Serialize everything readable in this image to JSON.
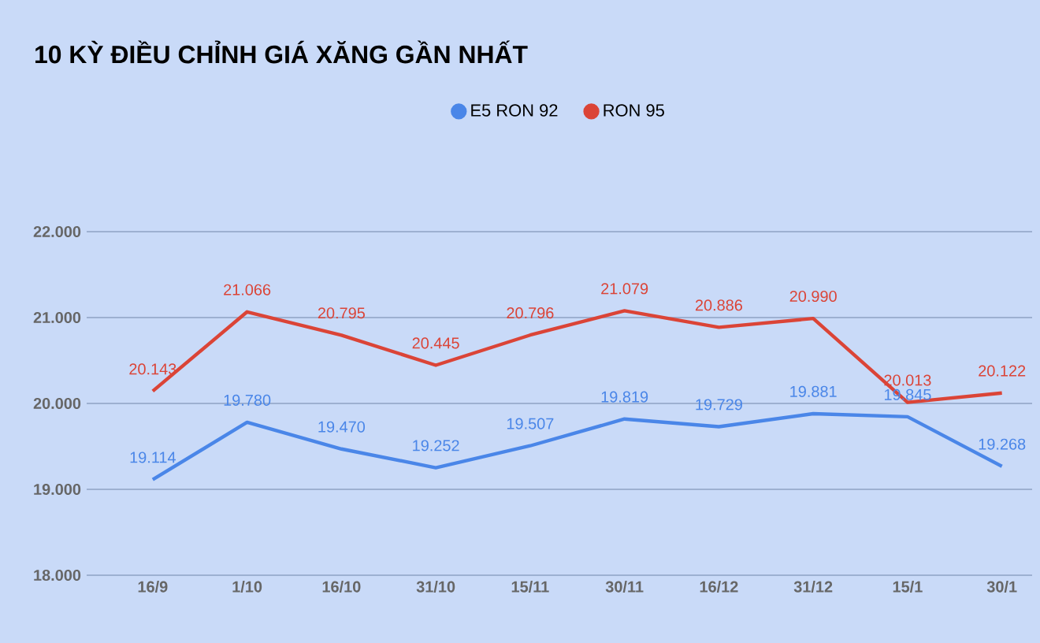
{
  "chart_data": {
    "type": "line",
    "title": "10 KỲ ĐIỀU CHỈNH GIÁ XĂNG GẦN NHẤT",
    "categories": [
      "16/9",
      "1/10",
      "16/10",
      "31/10",
      "15/11",
      "30/11",
      "16/12",
      "31/12",
      "15/1",
      "30/1"
    ],
    "series": [
      {
        "name": "E5 RON 92",
        "color": "#4a86e8",
        "values": [
          19114,
          19780,
          19470,
          19252,
          19507,
          19819,
          19729,
          19881,
          19845,
          19268
        ],
        "value_labels": [
          "19.114",
          "19.780",
          "19.470",
          "19.252",
          "19.507",
          "19.819",
          "19.729",
          "19.881",
          "19.845",
          "19.268"
        ]
      },
      {
        "name": "RON 95",
        "color": "#db4437",
        "values": [
          20143,
          21066,
          20795,
          20445,
          20796,
          21079,
          20886,
          20990,
          20013,
          20122
        ],
        "value_labels": [
          "20.143",
          "21.066",
          "20.795",
          "20.445",
          "20.796",
          "21.079",
          "20.886",
          "20.990",
          "20.013",
          "20.122"
        ]
      }
    ],
    "ylim": [
      18000,
      22000
    ],
    "yticks": [
      {
        "value": 18000,
        "label": "18.000"
      },
      {
        "value": 19000,
        "label": "19.000"
      },
      {
        "value": 20000,
        "label": "20.000"
      },
      {
        "value": 21000,
        "label": "21.000"
      },
      {
        "value": 22000,
        "label": "22.000"
      }
    ],
    "grid": "y",
    "legend": "top",
    "marker": "none",
    "line_style": "solid"
  }
}
